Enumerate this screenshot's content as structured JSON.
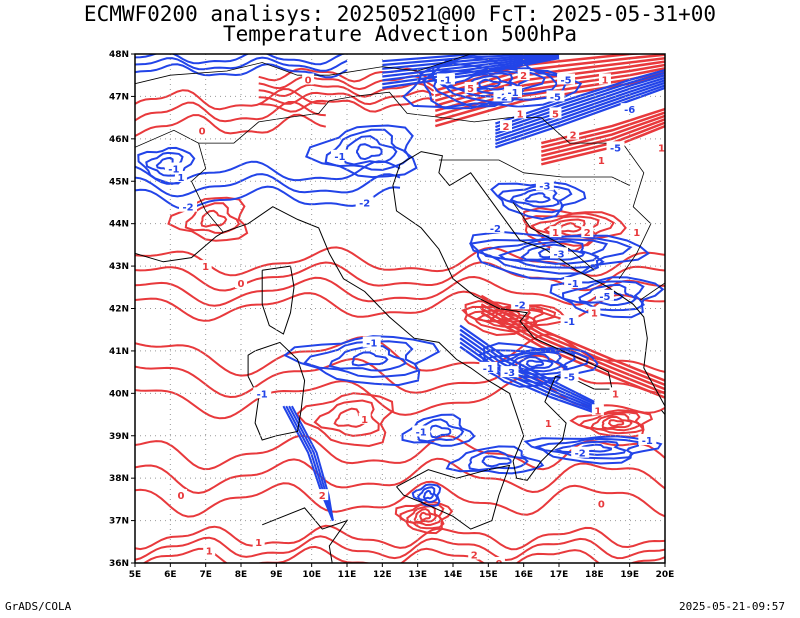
{
  "title_line1": "ECMWF0200 analisys: 20250521@00 FcT: 2025-05-31+00",
  "title_line2": "Temperature Advection 500hPa",
  "footer_left": "GrADS/COLA",
  "footer_right": "2025-05-21-09:57",
  "map": {
    "lon_range": [
      5,
      20
    ],
    "lat_range": [
      36,
      48
    ],
    "x_ticks": [
      "5E",
      "6E",
      "7E",
      "8E",
      "9E",
      "10E",
      "11E",
      "12E",
      "13E",
      "14E",
      "15E",
      "16E",
      "17E",
      "18E",
      "19E",
      "20E"
    ],
    "y_ticks": [
      "36N",
      "37N",
      "38N",
      "39N",
      "40N",
      "41N",
      "42N",
      "43N",
      "44N",
      "45N",
      "46N",
      "47N",
      "48N"
    ],
    "grid": "dotted",
    "colors": {
      "positive": "#e8393c",
      "negative": "#2244e8",
      "coast": "#000000",
      "grid": "#999999"
    },
    "contour_labels": [
      {
        "text": "1",
        "lon": 6.3,
        "lat": 45.1,
        "sign": "neg"
      },
      {
        "text": "-1",
        "lon": 6.1,
        "lat": 45.3,
        "sign": "neg"
      },
      {
        "text": "-2",
        "lon": 6.5,
        "lat": 44.4,
        "sign": "neg"
      },
      {
        "text": "0",
        "lon": 6.9,
        "lat": 46.2,
        "sign": "pos"
      },
      {
        "text": "1",
        "lon": 7.0,
        "lat": 43.0,
        "sign": "pos"
      },
      {
        "text": "0",
        "lon": 8.0,
        "lat": 42.6,
        "sign": "pos"
      },
      {
        "text": "0",
        "lon": 9.9,
        "lat": 47.4,
        "sign": "pos"
      },
      {
        "text": "-1",
        "lon": 10.8,
        "lat": 45.6,
        "sign": "neg"
      },
      {
        "text": "-2",
        "lon": 11.5,
        "lat": 44.5,
        "sign": "neg"
      },
      {
        "text": "-1",
        "lon": 11.7,
        "lat": 41.2,
        "sign": "neg"
      },
      {
        "text": "1",
        "lon": 11.5,
        "lat": 39.4,
        "sign": "pos"
      },
      {
        "text": "-1",
        "lon": 8.6,
        "lat": 40.0,
        "sign": "neg"
      },
      {
        "text": "0",
        "lon": 6.3,
        "lat": 37.6,
        "sign": "pos"
      },
      {
        "text": "1",
        "lon": 7.1,
        "lat": 36.3,
        "sign": "pos"
      },
      {
        "text": "1",
        "lon": 8.5,
        "lat": 36.5,
        "sign": "pos"
      },
      {
        "text": "-1",
        "lon": 13.8,
        "lat": 47.4,
        "sign": "neg"
      },
      {
        "text": "5",
        "lon": 14.5,
        "lat": 47.2,
        "sign": "pos"
      },
      {
        "text": "-2",
        "lon": 15.4,
        "lat": 47.0,
        "sign": "neg"
      },
      {
        "text": "-1",
        "lon": 15.7,
        "lat": 47.1,
        "sign": "neg"
      },
      {
        "text": "2",
        "lon": 16.0,
        "lat": 47.5,
        "sign": "pos"
      },
      {
        "text": "-5",
        "lon": 16.9,
        "lat": 47.0,
        "sign": "neg"
      },
      {
        "text": "-5",
        "lon": 17.2,
        "lat": 47.4,
        "sign": "neg"
      },
      {
        "text": "1",
        "lon": 18.3,
        "lat": 47.4,
        "sign": "pos"
      },
      {
        "text": "-6",
        "lon": 19.0,
        "lat": 46.7,
        "sign": "neg"
      },
      {
        "text": "5",
        "lon": 16.9,
        "lat": 46.6,
        "sign": "pos"
      },
      {
        "text": "1",
        "lon": 15.9,
        "lat": 46.6,
        "sign": "pos"
      },
      {
        "text": "2",
        "lon": 15.5,
        "lat": 46.3,
        "sign": "pos"
      },
      {
        "text": "2",
        "lon": 17.4,
        "lat": 46.1,
        "sign": "pos"
      },
      {
        "text": "-5",
        "lon": 18.6,
        "lat": 45.8,
        "sign": "neg"
      },
      {
        "text": "-3",
        "lon": 16.6,
        "lat": 44.9,
        "sign": "neg"
      },
      {
        "text": "1",
        "lon": 18.2,
        "lat": 45.5,
        "sign": "pos"
      },
      {
        "text": "1",
        "lon": 19.9,
        "lat": 45.8,
        "sign": "pos"
      },
      {
        "text": "-2",
        "lon": 15.2,
        "lat": 43.9,
        "sign": "neg"
      },
      {
        "text": "1",
        "lon": 16.9,
        "lat": 43.8,
        "sign": "pos"
      },
      {
        "text": "2",
        "lon": 17.8,
        "lat": 43.8,
        "sign": "pos"
      },
      {
        "text": "1",
        "lon": 19.2,
        "lat": 43.8,
        "sign": "pos"
      },
      {
        "text": "-3",
        "lon": 17.0,
        "lat": 43.3,
        "sign": "neg"
      },
      {
        "text": "-5",
        "lon": 18.3,
        "lat": 42.3,
        "sign": "neg"
      },
      {
        "text": "-1",
        "lon": 17.4,
        "lat": 42.6,
        "sign": "neg"
      },
      {
        "text": "-2",
        "lon": 15.9,
        "lat": 42.1,
        "sign": "neg"
      },
      {
        "text": "-1",
        "lon": 17.3,
        "lat": 41.7,
        "sign": "neg"
      },
      {
        "text": "1",
        "lon": 18.0,
        "lat": 41.9,
        "sign": "pos"
      },
      {
        "text": "-1",
        "lon": 15.0,
        "lat": 40.6,
        "sign": "neg"
      },
      {
        "text": "-3",
        "lon": 15.6,
        "lat": 40.5,
        "sign": "neg"
      },
      {
        "text": "-5",
        "lon": 17.3,
        "lat": 40.4,
        "sign": "neg"
      },
      {
        "text": "1",
        "lon": 18.6,
        "lat": 40.0,
        "sign": "pos"
      },
      {
        "text": "1",
        "lon": 18.1,
        "lat": 39.6,
        "sign": "pos"
      },
      {
        "text": "-1",
        "lon": 13.1,
        "lat": 39.1,
        "sign": "neg"
      },
      {
        "text": "-2",
        "lon": 17.6,
        "lat": 38.6,
        "sign": "neg"
      },
      {
        "text": "-1",
        "lon": 19.5,
        "lat": 38.9,
        "sign": "neg"
      },
      {
        "text": "1",
        "lon": 16.7,
        "lat": 39.3,
        "sign": "pos"
      },
      {
        "text": "2",
        "lon": 14.6,
        "lat": 36.2,
        "sign": "pos"
      },
      {
        "text": "0",
        "lon": 15.3,
        "lat": 36.0,
        "sign": "pos"
      },
      {
        "text": "0",
        "lon": 18.2,
        "lat": 37.4,
        "sign": "pos"
      },
      {
        "text": "2",
        "lon": 10.3,
        "lat": 37.6,
        "sign": "pos"
      }
    ]
  }
}
